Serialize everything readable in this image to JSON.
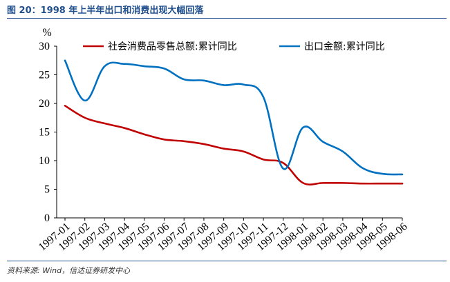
{
  "header": {
    "title": "图 20：1998 年上半年出口和消费出现大幅回落"
  },
  "footer": {
    "source": "资料来源: Wind，信达证券研发中心"
  },
  "chart_data": {
    "type": "line",
    "title": "",
    "ylabel": "%",
    "xlabel": "",
    "ylim": [
      0,
      30
    ],
    "yticks": [
      0,
      5,
      10,
      15,
      20,
      25,
      30
    ],
    "grid": false,
    "legend_position": "top",
    "categories": [
      "1997-01",
      "1997-02",
      "1997-03",
      "1997-04",
      "1997-05",
      "1997-06",
      "1997-07",
      "1997-08",
      "1997-09",
      "1997-10",
      "1997-11",
      "1997-12",
      "1998-01",
      "1998-02",
      "1998-03",
      "1998-04",
      "1998-05",
      "1998-06"
    ],
    "series": [
      {
        "name": "社会消费品零售总额:累计同比",
        "color": "#c00000",
        "values": [
          19.6,
          17.5,
          16.5,
          15.7,
          14.6,
          13.7,
          13.4,
          12.9,
          12.1,
          11.6,
          10.2,
          9.6,
          6.1,
          6.1,
          6.1,
          6.0,
          6.0,
          6.0
        ]
      },
      {
        "name": "出口金额:累计同比",
        "color": "#0070c0",
        "values": [
          27.5,
          20.5,
          26.5,
          26.9,
          26.5,
          26.1,
          24.2,
          24.0,
          23.2,
          23.3,
          21.1,
          8.6,
          15.8,
          13.3,
          11.6,
          8.7,
          7.7,
          7.6
        ]
      }
    ]
  }
}
